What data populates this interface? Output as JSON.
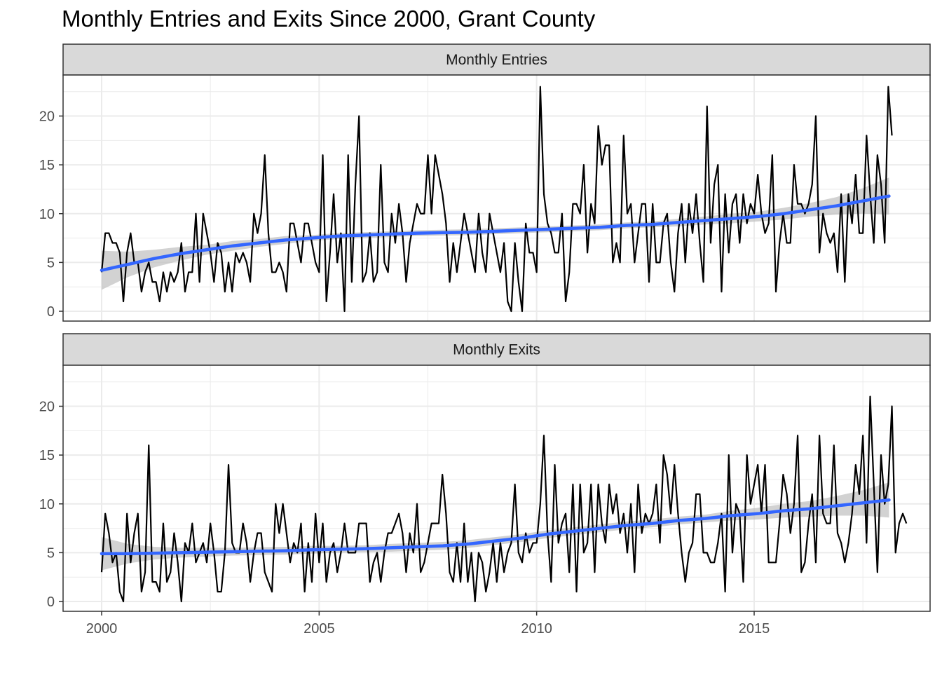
{
  "chart_data": {
    "type": "line",
    "title": "Monthly Entries and Exits Since 2000, Grant County",
    "xlabel": "",
    "ylabel": "",
    "xlim": [
      2000,
      2018.1
    ],
    "ylim": [
      0,
      23
    ],
    "x_ticks": [
      "2000",
      "2005",
      "2010",
      "2015"
    ],
    "y_ticks": [
      "0",
      "5",
      "10",
      "15",
      "20"
    ],
    "grid": true,
    "colors": {
      "series": "#000000",
      "trend": "#3366ff",
      "band": "#bfbfbf",
      "strip": "#d9d9d9",
      "grid": "#ebebeb"
    },
    "x_start": 2000,
    "x_step_months": 1,
    "panels": [
      {
        "label": "Monthly Entries",
        "values": [
          4,
          8,
          8,
          7,
          7,
          6,
          1,
          6,
          8,
          5,
          5,
          2,
          4,
          5,
          3,
          3,
          1,
          4,
          2,
          4,
          3,
          4,
          7,
          2,
          4,
          4,
          10,
          3,
          10,
          8,
          6,
          3,
          7,
          6,
          2,
          5,
          2,
          6,
          5,
          6,
          5,
          3,
          10,
          8,
          10,
          16,
          8,
          4,
          4,
          5,
          4,
          2,
          9,
          9,
          7,
          5,
          9,
          9,
          7,
          5,
          4,
          16,
          1,
          6,
          12,
          5,
          8,
          0,
          16,
          3,
          13,
          20,
          3,
          4,
          8,
          3,
          4,
          15,
          5,
          4,
          10,
          7,
          11,
          8,
          3,
          7,
          9,
          11,
          10,
          10,
          16,
          10,
          16,
          14,
          12,
          9,
          3,
          7,
          4,
          7,
          10,
          8,
          6,
          4,
          10,
          6,
          4,
          10,
          8,
          6,
          4,
          7,
          1,
          0,
          7,
          3,
          0,
          9,
          6,
          6,
          4,
          23,
          12,
          9,
          8,
          6,
          6,
          10,
          1,
          4,
          11,
          11,
          10,
          15,
          6,
          11,
          9,
          19,
          15,
          17,
          17,
          5,
          7,
          5,
          18,
          10,
          11,
          5,
          8,
          11,
          11,
          3,
          11,
          5,
          5,
          9,
          10,
          5,
          2,
          8,
          11,
          5,
          11,
          8,
          12,
          7,
          3,
          21,
          7,
          13,
          15,
          2,
          12,
          6,
          11,
          12,
          7,
          12,
          9,
          11,
          10,
          14,
          10,
          8,
          9,
          16,
          2,
          7,
          10,
          7,
          7,
          15,
          11,
          11,
          10,
          11,
          13,
          20,
          6,
          10,
          8,
          7,
          8,
          4,
          12,
          3,
          12,
          9,
          14,
          8,
          8,
          18,
          12,
          7,
          16,
          13,
          7,
          23,
          18
        ],
        "trend": [
          4.2,
          4.8,
          5.4,
          5.9,
          6.3,
          6.7,
          7.0,
          7.3,
          7.5,
          7.7,
          7.8,
          7.9,
          8.0,
          8.05,
          8.1,
          8.2,
          8.3,
          8.4,
          8.5,
          8.6,
          8.8,
          8.9,
          9.1,
          9.3,
          9.5,
          9.7,
          10.0,
          10.4,
          10.8,
          11.3,
          11.8
        ],
        "band_lower": [
          2.2,
          3.5,
          4.5,
          5.2,
          5.8,
          6.2,
          6.6,
          6.9,
          7.2,
          7.4,
          7.5,
          7.6,
          7.7,
          7.75,
          7.8,
          7.9,
          8.0,
          8.1,
          8.2,
          8.3,
          8.5,
          8.6,
          8.7,
          8.9,
          9.0,
          9.2,
          9.4,
          9.7,
          9.9,
          10.0,
          9.9
        ],
        "band_upper": [
          6.2,
          6.1,
          6.3,
          6.6,
          6.8,
          7.2,
          7.4,
          7.7,
          7.8,
          8.0,
          8.1,
          8.2,
          8.3,
          8.35,
          8.4,
          8.5,
          8.6,
          8.7,
          8.8,
          8.9,
          9.1,
          9.2,
          9.5,
          9.7,
          10.0,
          10.2,
          10.6,
          11.1,
          11.7,
          12.6,
          13.7
        ]
      },
      {
        "label": "Monthly Exits",
        "values": [
          3,
          9,
          7,
          4,
          5,
          1,
          0,
          9,
          4,
          7,
          9,
          1,
          3,
          16,
          2,
          2,
          1,
          8,
          2,
          3,
          7,
          4,
          0,
          6,
          5,
          8,
          4,
          5,
          6,
          4,
          8,
          5,
          1,
          1,
          5,
          14,
          6,
          5,
          5,
          8,
          6,
          2,
          5,
          7,
          7,
          3,
          2,
          1,
          10,
          7,
          10,
          7,
          4,
          6,
          5,
          8,
          1,
          6,
          2,
          9,
          4,
          8,
          2,
          5,
          6,
          3,
          5,
          8,
          5,
          5,
          5,
          8,
          8,
          8,
          2,
          4,
          5,
          2,
          5,
          7,
          7,
          8,
          9,
          7,
          3,
          7,
          5,
          10,
          3,
          4,
          6,
          8,
          8,
          8,
          13,
          9,
          3,
          2,
          6,
          2,
          8,
          2,
          5,
          0,
          5,
          4,
          1,
          3,
          6,
          2,
          6,
          3,
          5,
          6,
          12,
          5,
          4,
          7,
          5,
          6,
          6,
          10,
          17,
          7,
          2,
          14,
          6,
          8,
          9,
          3,
          12,
          1,
          12,
          5,
          6,
          12,
          3,
          12,
          8,
          6,
          12,
          9,
          11,
          7,
          9,
          5,
          10,
          3,
          12,
          7,
          9,
          8,
          9,
          12,
          6,
          15,
          13,
          9,
          14,
          9,
          5,
          2,
          5,
          6,
          11,
          11,
          5,
          5,
          4,
          4,
          6,
          9,
          1,
          15,
          5,
          10,
          9,
          2,
          15,
          10,
          12,
          14,
          9,
          14,
          4,
          4,
          4,
          8,
          13,
          11,
          7,
          10,
          17,
          3,
          4,
          8,
          11,
          4,
          17,
          9,
          8,
          8,
          16,
          7,
          6,
          4,
          6,
          9,
          14,
          11,
          17,
          6,
          21,
          12,
          3,
          15,
          10,
          12,
          20,
          5,
          8,
          9,
          8
        ],
        "trend": [
          4.9,
          4.9,
          4.95,
          5.0,
          5.05,
          5.1,
          5.15,
          5.2,
          5.3,
          5.35,
          5.4,
          5.5,
          5.6,
          5.7,
          5.9,
          6.2,
          6.5,
          6.9,
          7.2,
          7.5,
          7.8,
          8.0,
          8.3,
          8.5,
          8.8,
          9.0,
          9.3,
          9.5,
          9.8,
          10.1,
          10.4
        ],
        "band_lower": [
          3.2,
          3.9,
          4.3,
          4.5,
          4.6,
          4.7,
          4.75,
          4.8,
          4.9,
          5.0,
          5.05,
          5.1,
          5.2,
          5.3,
          5.5,
          5.8,
          6.1,
          6.5,
          6.8,
          7.1,
          7.4,
          7.6,
          7.9,
          8.1,
          8.3,
          8.4,
          8.6,
          8.7,
          8.8,
          8.8,
          8.6
        ],
        "band_upper": [
          6.6,
          5.9,
          5.6,
          5.5,
          5.5,
          5.5,
          5.55,
          5.6,
          5.7,
          5.7,
          5.75,
          5.9,
          6.0,
          6.1,
          6.3,
          6.6,
          6.9,
          7.3,
          7.6,
          7.9,
          8.2,
          8.4,
          8.7,
          8.9,
          9.3,
          9.6,
          10.0,
          10.3,
          10.8,
          11.4,
          12.2
        ]
      }
    ]
  }
}
